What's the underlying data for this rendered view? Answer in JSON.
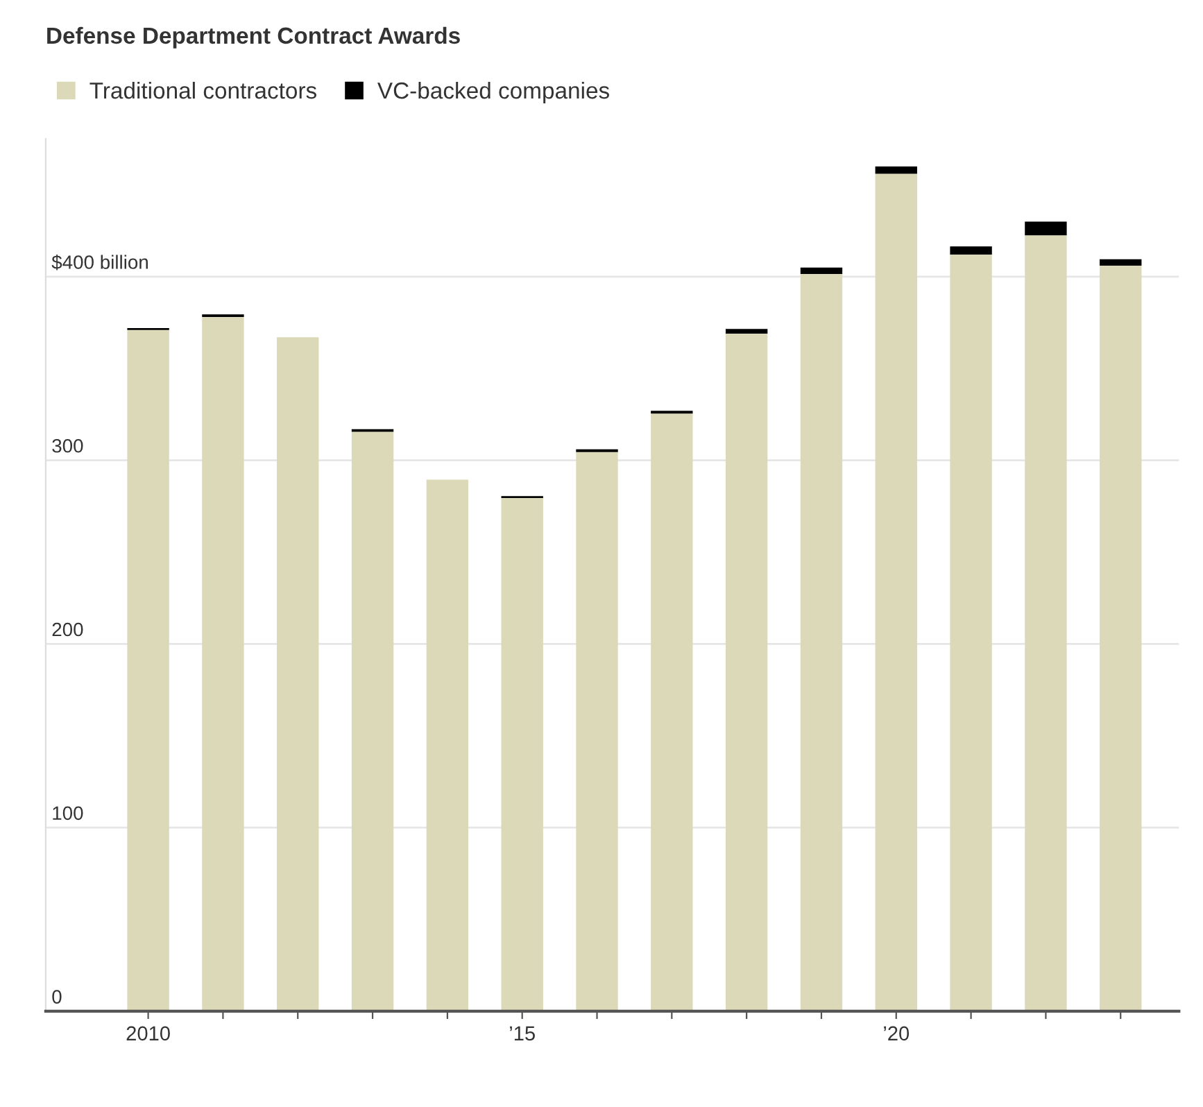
{
  "chart_data": {
    "type": "bar",
    "title": "Defense Department Contract Awards",
    "stacked": true,
    "categories": [
      "2010",
      null,
      null,
      null,
      null,
      "’15",
      null,
      null,
      null,
      null,
      "’20",
      null,
      null,
      null
    ],
    "series": [
      {
        "name": "Traditional contractors",
        "color": "#dcd9b8",
        "values": [
          371,
          378,
          367,
          315.5,
          289.5,
          279.5,
          304.5,
          325.5,
          369,
          401.5,
          456,
          412,
          422.5,
          406
        ]
      },
      {
        "name": "VC-backed companies",
        "color": "#000000",
        "values": [
          1,
          1.5,
          0,
          1.5,
          0,
          1,
          1.5,
          1.5,
          2.5,
          3.5,
          4,
          4.5,
          7.5,
          3.5
        ]
      }
    ],
    "ylim": [
      0,
      475
    ],
    "yticks": [
      0,
      100,
      200,
      300,
      {
        "value": 400,
        "label": "$400 billion"
      }
    ],
    "grid": "y",
    "legend": "top left"
  }
}
